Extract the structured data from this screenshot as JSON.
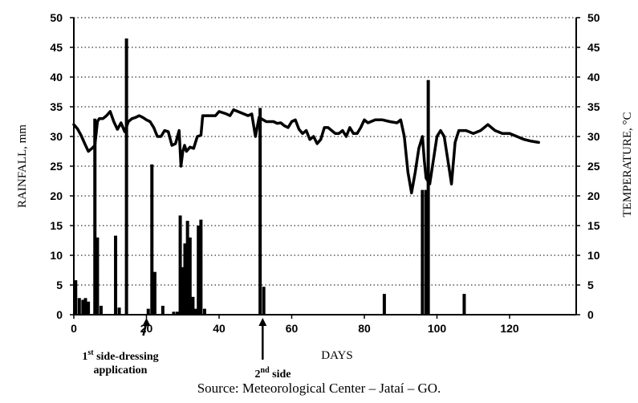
{
  "chart_data": {
    "type": "bar",
    "xlabel": "DAYS",
    "ylabel_left": "RAINFALL, mm",
    "ylabel_right": "TEMPERATURE, °C",
    "xlim": [
      0,
      134
    ],
    "ylim": [
      0,
      50
    ],
    "x_ticks": [
      "0",
      "20",
      "40",
      "60",
      "80",
      "100",
      "120"
    ],
    "y_ticks": [
      "0",
      "5",
      "10",
      "15",
      "20",
      "25",
      "30",
      "35",
      "40",
      "45",
      "50"
    ],
    "grid": "horizontal dotted",
    "series": [
      {
        "kind": "bar",
        "axis": "left",
        "points": [
          [
            0.5,
            5.8
          ],
          [
            1.5,
            2.8
          ],
          [
            2.5,
            2.5
          ],
          [
            3.2,
            2.8
          ],
          [
            4.0,
            2.2
          ],
          [
            5.8,
            33.0
          ],
          [
            6.5,
            13.0
          ],
          [
            7.5,
            1.5
          ],
          [
            11.5,
            13.3
          ],
          [
            12.5,
            1.2
          ],
          [
            14.5,
            46.5
          ],
          [
            20.5,
            1.0
          ],
          [
            21.5,
            25.3
          ],
          [
            22.3,
            7.2
          ],
          [
            24.5,
            1.5
          ],
          [
            27.5,
            0.5
          ],
          [
            28.5,
            0.5
          ],
          [
            29.3,
            16.7
          ],
          [
            30.0,
            8.0
          ],
          [
            30.6,
            12.0
          ],
          [
            31.3,
            15.8
          ],
          [
            32.0,
            13.0
          ],
          [
            32.8,
            3.0
          ],
          [
            33.5,
            1.0
          ],
          [
            34.3,
            15.0
          ],
          [
            35.0,
            16.0
          ],
          [
            36.0,
            1.0
          ],
          [
            51.3,
            34.8
          ],
          [
            52.3,
            4.7
          ],
          [
            85.5,
            3.5
          ],
          [
            96.0,
            21.0
          ],
          [
            97.0,
            21.0
          ],
          [
            97.6,
            39.5
          ],
          [
            107.5,
            3.5
          ]
        ]
      },
      {
        "kind": "line",
        "axis": "right",
        "points": [
          [
            0,
            32
          ],
          [
            1,
            31.3
          ],
          [
            2,
            30.2
          ],
          [
            3,
            28.8
          ],
          [
            4,
            27.5
          ],
          [
            5,
            28
          ],
          [
            5.8,
            28.5
          ],
          [
            6.5,
            32.5
          ],
          [
            7,
            33
          ],
          [
            8,
            33
          ],
          [
            9,
            33.5
          ],
          [
            10,
            34.2
          ],
          [
            11,
            32.5
          ],
          [
            12,
            31.2
          ],
          [
            13,
            32.3
          ],
          [
            14,
            30.8
          ],
          [
            15,
            32.5
          ],
          [
            16,
            33
          ],
          [
            17,
            33.2
          ],
          [
            18,
            33.5
          ],
          [
            19,
            33.2
          ],
          [
            20,
            32.8
          ],
          [
            21,
            32.5
          ],
          [
            22,
            31.5
          ],
          [
            23,
            30
          ],
          [
            24,
            30
          ],
          [
            25,
            31
          ],
          [
            26,
            30.8
          ],
          [
            27,
            28.5
          ],
          [
            28,
            28.8
          ],
          [
            29,
            31
          ],
          [
            29.5,
            25
          ],
          [
            30,
            27.5
          ],
          [
            30.5,
            28.5
          ],
          [
            31,
            27.5
          ],
          [
            32,
            28.2
          ],
          [
            33,
            28
          ],
          [
            34,
            30
          ],
          [
            35,
            30.2
          ],
          [
            35.5,
            33.5
          ],
          [
            37,
            33.5
          ],
          [
            39,
            33.5
          ],
          [
            40,
            34.2
          ],
          [
            42,
            33.8
          ],
          [
            43,
            33.5
          ],
          [
            44,
            34.5
          ],
          [
            46,
            34
          ],
          [
            48,
            33.5
          ],
          [
            49,
            33.8
          ],
          [
            50,
            30
          ],
          [
            51,
            33.2
          ],
          [
            53,
            32.5
          ],
          [
            55,
            32.5
          ],
          [
            56,
            32.2
          ],
          [
            57,
            32.3
          ],
          [
            58,
            31.8
          ],
          [
            59,
            31.5
          ],
          [
            60,
            32.5
          ],
          [
            61,
            32.8
          ],
          [
            62,
            31.2
          ],
          [
            63,
            30.5
          ],
          [
            64,
            31
          ],
          [
            65,
            29.5
          ],
          [
            66,
            30
          ],
          [
            67,
            28.8
          ],
          [
            68,
            29.5
          ],
          [
            69,
            31.5
          ],
          [
            70,
            31.5
          ],
          [
            72,
            30.5
          ],
          [
            73,
            30.5
          ],
          [
            74,
            31
          ],
          [
            75,
            30
          ],
          [
            76,
            31.5
          ],
          [
            77,
            30.5
          ],
          [
            78,
            30.5
          ],
          [
            79,
            31.5
          ],
          [
            80,
            32.8
          ],
          [
            81,
            32.3
          ],
          [
            83,
            32.8
          ],
          [
            85,
            32.8
          ],
          [
            87,
            32.5
          ],
          [
            89,
            32.3
          ],
          [
            90,
            32.8
          ],
          [
            91,
            30
          ],
          [
            92,
            24
          ],
          [
            93,
            20.5
          ],
          [
            94,
            24
          ],
          [
            95,
            28
          ],
          [
            96,
            30
          ],
          [
            96.5,
            26
          ],
          [
            97,
            23
          ],
          [
            98,
            22
          ],
          [
            99,
            26
          ],
          [
            100,
            30
          ],
          [
            101,
            31
          ],
          [
            102,
            30
          ],
          [
            103,
            26
          ],
          [
            104,
            22
          ],
          [
            105,
            29
          ],
          [
            106,
            31
          ],
          [
            108,
            31
          ],
          [
            110,
            30.5
          ],
          [
            112,
            31
          ],
          [
            114,
            32
          ],
          [
            116,
            31
          ],
          [
            118,
            30.5
          ],
          [
            120,
            30.5
          ],
          [
            122,
            30
          ],
          [
            124,
            29.5
          ],
          [
            126,
            29.2
          ],
          [
            128,
            29
          ]
        ]
      }
    ],
    "annotations": [
      {
        "line1": "1",
        "sup": "st",
        "rest": " side-dressing",
        "line2": "application",
        "x": 20
      },
      {
        "line1": "2",
        "sup": "nd",
        "rest": " side",
        "line2": "",
        "x": 52
      }
    ],
    "source": "Source: Meteorological Center – Jataí – GO."
  }
}
